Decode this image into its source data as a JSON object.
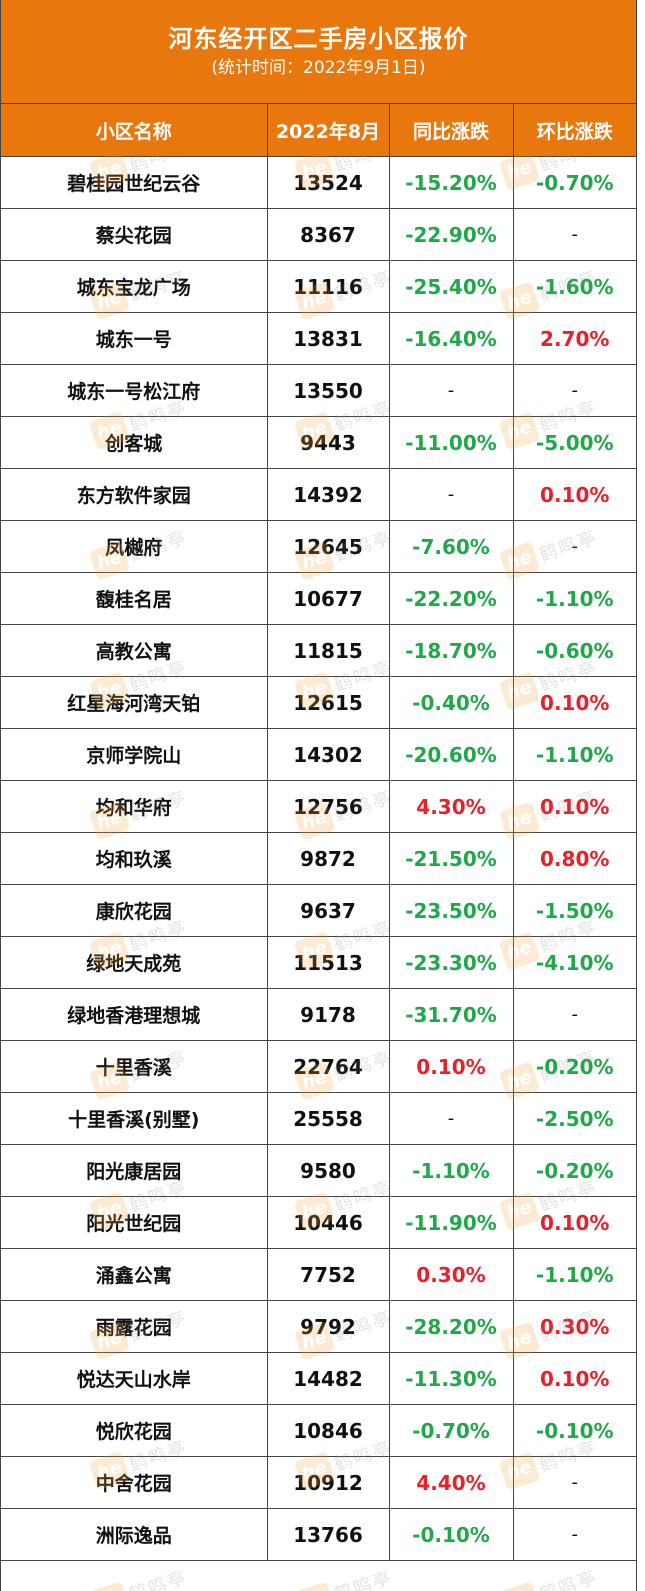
{
  "title": "河东经开区二手房小区报价",
  "subtitle": "(统计时间：2022年9月1日)",
  "headers": [
    "小区名称",
    "2022年8月",
    "同比涨跌",
    "环比涨跌"
  ],
  "watermark": {
    "logo": "he",
    "text": "鹤鸣亭"
  },
  "colors": {
    "header_bg": "#e8780e",
    "up": "#e8202a",
    "down": "#21a84a"
  },
  "rows": [
    {
      "name": "碧桂园世纪云谷",
      "price": "13524",
      "yoy": "-15.20%",
      "mom": "-0.70%"
    },
    {
      "name": "蔡尖花园",
      "price": "8367",
      "yoy": "-22.90%",
      "mom": "-"
    },
    {
      "name": "城东宝龙广场",
      "price": "11116",
      "yoy": "-25.40%",
      "mom": "-1.60%"
    },
    {
      "name": "城东一号",
      "price": "13831",
      "yoy": "-16.40%",
      "mom": "2.70%"
    },
    {
      "name": "城东一号松江府",
      "price": "13550",
      "yoy": "-",
      "mom": "-"
    },
    {
      "name": "创客城",
      "price": "9443",
      "yoy": "-11.00%",
      "mom": "-5.00%"
    },
    {
      "name": "东方软件家园",
      "price": "14392",
      "yoy": "-",
      "mom": "0.10%"
    },
    {
      "name": "凤樾府",
      "price": "12645",
      "yoy": "-7.60%",
      "mom": "-"
    },
    {
      "name": "馥桂名居",
      "price": "10677",
      "yoy": "-22.20%",
      "mom": "-1.10%"
    },
    {
      "name": "高教公寓",
      "price": "11815",
      "yoy": "-18.70%",
      "mom": "-0.60%"
    },
    {
      "name": "红星海河湾天铂",
      "price": "12615",
      "yoy": "-0.40%",
      "mom": "0.10%"
    },
    {
      "name": "京师学院山",
      "price": "14302",
      "yoy": "-20.60%",
      "mom": "-1.10%"
    },
    {
      "name": "均和华府",
      "price": "12756",
      "yoy": "4.30%",
      "mom": "0.10%"
    },
    {
      "name": "均和玖溪",
      "price": "9872",
      "yoy": "-21.50%",
      "mom": "0.80%"
    },
    {
      "name": "康欣花园",
      "price": "9637",
      "yoy": "-23.50%",
      "mom": "-1.50%"
    },
    {
      "name": "绿地天成苑",
      "price": "11513",
      "yoy": "-23.30%",
      "mom": "-4.10%"
    },
    {
      "name": "绿地香港理想城",
      "price": "9178",
      "yoy": "-31.70%",
      "mom": "-"
    },
    {
      "name": "十里香溪",
      "price": "22764",
      "yoy": "0.10%",
      "mom": "-0.20%"
    },
    {
      "name": "十里香溪(别墅)",
      "price": "25558",
      "yoy": "-",
      "mom": "-2.50%"
    },
    {
      "name": "阳光康居园",
      "price": "9580",
      "yoy": "-1.10%",
      "mom": "-0.20%"
    },
    {
      "name": "阳光世纪园",
      "price": "10446",
      "yoy": "-11.90%",
      "mom": "0.10%"
    },
    {
      "name": "涌鑫公寓",
      "price": "7752",
      "yoy": "0.30%",
      "mom": "-1.10%"
    },
    {
      "name": "雨露花园",
      "price": "9792",
      "yoy": "-28.20%",
      "mom": "0.30%"
    },
    {
      "name": "悦达天山水岸",
      "price": "14482",
      "yoy": "-11.30%",
      "mom": "0.10%"
    },
    {
      "name": "悦欣花园",
      "price": "10846",
      "yoy": "-0.70%",
      "mom": "-0.10%"
    },
    {
      "name": "中舍花园",
      "price": "10912",
      "yoy": "4.40%",
      "mom": "-"
    },
    {
      "name": "洲际逸品",
      "price": "13766",
      "yoy": "-0.10%",
      "mom": "-"
    }
  ]
}
